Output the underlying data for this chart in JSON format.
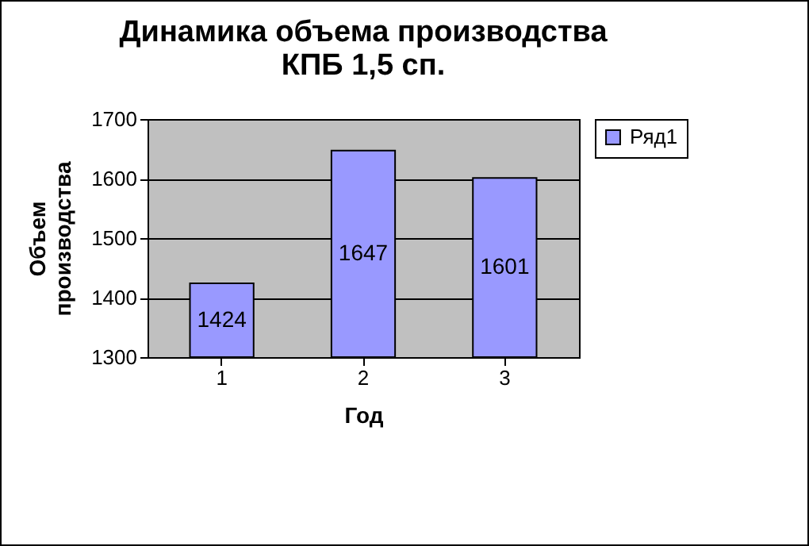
{
  "chart_data": {
    "type": "bar",
    "title": "Динамика объема производства КПБ 1,5 сп.",
    "xlabel": "Год",
    "ylabel": "Объем производства",
    "categories": [
      "1",
      "2",
      "3"
    ],
    "series": [
      {
        "name": "Ряд1",
        "color": "#9999ff",
        "values": [
          1424,
          1647,
          1601
        ]
      }
    ],
    "ylim": [
      1300,
      1700
    ],
    "yticks": [
      1300,
      1400,
      1500,
      1600,
      1700
    ],
    "grid": "y",
    "legend": "right",
    "data_labels": true
  }
}
